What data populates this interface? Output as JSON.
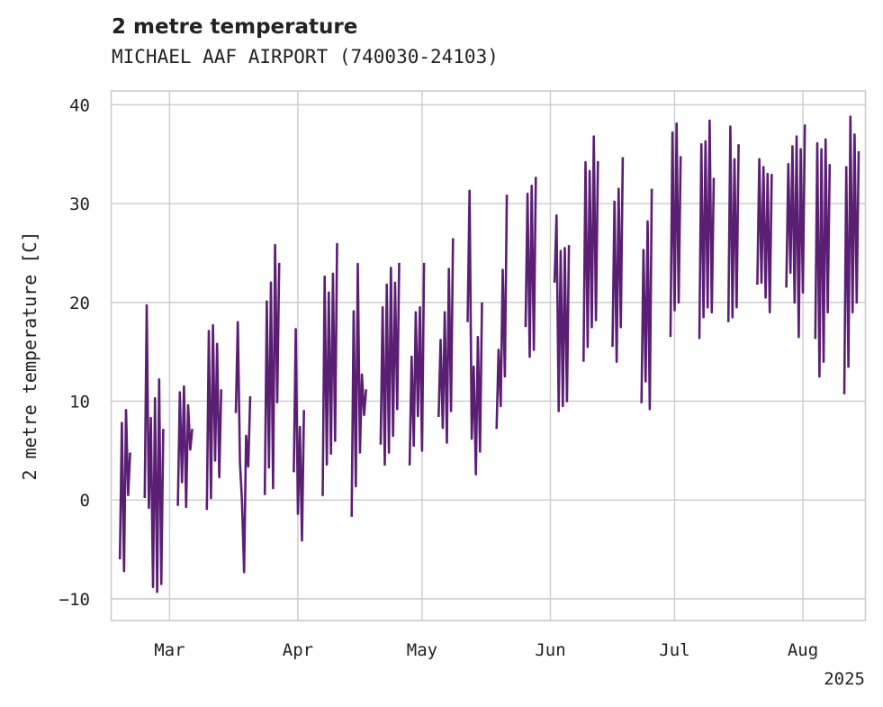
{
  "chart_data": {
    "type": "line",
    "title": "2 metre temperature",
    "subtitle": "MICHAEL AAF AIRPORT (740030-24103)",
    "xlabel": "",
    "ylabel": "2 metre temperature [C]",
    "x_range": [
      "2025-02-15",
      "2025-08-16"
    ],
    "ylim": [
      -12.2,
      41.4
    ],
    "y_ticks": [
      {
        "value": -10,
        "label": "−10"
      },
      {
        "value": 0,
        "label": "0"
      },
      {
        "value": 10,
        "label": "10"
      },
      {
        "value": 20,
        "label": "20"
      },
      {
        "value": 30,
        "label": "30"
      },
      {
        "value": 40,
        "label": "40"
      }
    ],
    "x_ticks": [
      {
        "date": "2025-03-01",
        "label": "Mar"
      },
      {
        "date": "2025-04-01",
        "label": "Apr"
      },
      {
        "date": "2025-05-01",
        "label": "May"
      },
      {
        "date": "2025-06-01",
        "label": "Jun"
      },
      {
        "date": "2025-07-01",
        "label": "Jul"
      },
      {
        "date": "2025-08-01",
        "label": "Aug"
      }
    ],
    "year_label": "2025",
    "grid": true,
    "series_color": "#5a1e73",
    "series": [
      {
        "values": [
          [
            "2025-02-17",
            -6.0
          ],
          [
            "2025-02-17",
            7.8
          ],
          [
            "2025-02-18",
            -7.2
          ],
          [
            "2025-02-18",
            9.1
          ],
          [
            "2025-02-19",
            0.5
          ],
          [
            "2025-02-19",
            4.8
          ],
          [
            "2025-02-23",
            0.2
          ],
          [
            "2025-02-23",
            19.7
          ],
          [
            "2025-02-24",
            -0.8
          ],
          [
            "2025-02-24",
            8.3
          ],
          [
            "2025-02-25",
            -8.8
          ],
          [
            "2025-02-25",
            10.3
          ],
          [
            "2025-02-26",
            -9.3
          ],
          [
            "2025-02-26",
            12.2
          ],
          [
            "2025-02-27",
            -8.5
          ],
          [
            "2025-02-27",
            7.2
          ],
          [
            "2025-03-03",
            -0.6
          ],
          [
            "2025-03-03",
            10.9
          ],
          [
            "2025-03-04",
            1.8
          ],
          [
            "2025-03-04",
            11.5
          ],
          [
            "2025-03-05",
            -0.7
          ],
          [
            "2025-03-05",
            9.6
          ],
          [
            "2025-03-06",
            5.1
          ],
          [
            "2025-03-06",
            7.2
          ],
          [
            "2025-03-10",
            -1.0
          ],
          [
            "2025-03-10",
            17.1
          ],
          [
            "2025-03-11",
            0.2
          ],
          [
            "2025-03-11",
            17.7
          ],
          [
            "2025-03-12",
            4.0
          ],
          [
            "2025-03-12",
            15.8
          ],
          [
            "2025-03-13",
            2.3
          ],
          [
            "2025-03-13",
            11.2
          ],
          [
            "2025-03-17",
            8.8
          ],
          [
            "2025-03-17",
            18.0
          ],
          [
            "2025-03-18",
            3.8
          ],
          [
            "2025-03-18",
            0.0
          ],
          [
            "2025-03-19",
            -7.3
          ],
          [
            "2025-03-19",
            6.5
          ],
          [
            "2025-03-20",
            3.4
          ],
          [
            "2025-03-20",
            10.5
          ],
          [
            "2025-03-24",
            0.5
          ],
          [
            "2025-03-24",
            20.1
          ],
          [
            "2025-03-25",
            3.3
          ],
          [
            "2025-03-25",
            22.0
          ],
          [
            "2025-03-26",
            1.2
          ],
          [
            "2025-03-26",
            25.8
          ],
          [
            "2025-03-27",
            9.9
          ],
          [
            "2025-03-27",
            24.0
          ],
          [
            "2025-03-31",
            2.8
          ],
          [
            "2025-03-31",
            17.3
          ],
          [
            "2025-04-01",
            -1.4
          ],
          [
            "2025-04-01",
            7.4
          ],
          [
            "2025-04-02",
            -4.1
          ],
          [
            "2025-04-02",
            9.1
          ],
          [
            "2025-04-07",
            0.4
          ],
          [
            "2025-04-07",
            22.6
          ],
          [
            "2025-04-08",
            3.6
          ],
          [
            "2025-04-08",
            21.0
          ],
          [
            "2025-04-09",
            4.7
          ],
          [
            "2025-04-09",
            22.9
          ],
          [
            "2025-04-10",
            6.0
          ],
          [
            "2025-04-10",
            26.0
          ],
          [
            "2025-04-14",
            -1.7
          ],
          [
            "2025-04-14",
            19.1
          ],
          [
            "2025-04-15",
            1.4
          ],
          [
            "2025-04-15",
            23.9
          ],
          [
            "2025-04-16",
            4.8
          ],
          [
            "2025-04-16",
            12.7
          ],
          [
            "2025-04-17",
            8.6
          ],
          [
            "2025-04-17",
            11.2
          ],
          [
            "2025-04-21",
            5.6
          ],
          [
            "2025-04-21",
            19.5
          ],
          [
            "2025-04-22",
            3.6
          ],
          [
            "2025-04-22",
            21.8
          ],
          [
            "2025-04-23",
            4.8
          ],
          [
            "2025-04-23",
            23.5
          ],
          [
            "2025-04-24",
            6.5
          ],
          [
            "2025-04-24",
            22.0
          ],
          [
            "2025-04-25",
            9.2
          ],
          [
            "2025-04-25",
            24.0
          ],
          [
            "2025-04-28",
            3.5
          ],
          [
            "2025-04-28",
            14.5
          ],
          [
            "2025-04-29",
            5.5
          ],
          [
            "2025-04-29",
            19.0
          ],
          [
            "2025-04-30",
            8.5
          ],
          [
            "2025-04-30",
            19.5
          ],
          [
            "2025-05-01",
            5.0
          ],
          [
            "2025-05-01",
            24.0
          ],
          [
            "2025-05-05",
            8.4
          ],
          [
            "2025-05-05",
            16.2
          ],
          [
            "2025-05-06",
            7.3
          ],
          [
            "2025-05-06",
            19.0
          ],
          [
            "2025-05-07",
            5.8
          ],
          [
            "2025-05-07",
            23.4
          ],
          [
            "2025-05-08",
            9.0
          ],
          [
            "2025-05-08",
            26.5
          ],
          [
            "2025-05-12",
            18.0
          ],
          [
            "2025-05-12",
            31.3
          ],
          [
            "2025-05-13",
            6.2
          ],
          [
            "2025-05-13",
            13.5
          ],
          [
            "2025-05-14",
            2.6
          ],
          [
            "2025-05-14",
            16.5
          ],
          [
            "2025-05-15",
            4.9
          ],
          [
            "2025-05-15",
            20.0
          ],
          [
            "2025-05-19",
            7.2
          ],
          [
            "2025-05-19",
            15.2
          ],
          [
            "2025-05-20",
            9.5
          ],
          [
            "2025-05-20",
            23.3
          ],
          [
            "2025-05-21",
            12.5
          ],
          [
            "2025-05-21",
            30.9
          ],
          [
            "2025-05-26",
            17.5
          ],
          [
            "2025-05-26",
            31.0
          ],
          [
            "2025-05-27",
            14.5
          ],
          [
            "2025-05-27",
            31.8
          ],
          [
            "2025-05-28",
            15.2
          ],
          [
            "2025-05-28",
            32.7
          ],
          [
            "2025-06-02",
            22.0
          ],
          [
            "2025-06-02",
            28.8
          ],
          [
            "2025-06-03",
            9.0
          ],
          [
            "2025-06-03",
            25.2
          ],
          [
            "2025-06-04",
            9.5
          ],
          [
            "2025-06-04",
            25.5
          ],
          [
            "2025-06-05",
            10.0
          ],
          [
            "2025-06-05",
            25.8
          ],
          [
            "2025-06-09",
            14.0
          ],
          [
            "2025-06-09",
            34.2
          ],
          [
            "2025-06-10",
            15.5
          ],
          [
            "2025-06-10",
            33.3
          ],
          [
            "2025-06-11",
            17.5
          ],
          [
            "2025-06-11",
            36.8
          ],
          [
            "2025-06-12",
            18.2
          ],
          [
            "2025-06-12",
            34.3
          ],
          [
            "2025-06-16",
            15.5
          ],
          [
            "2025-06-16",
            30.2
          ],
          [
            "2025-06-17",
            14.0
          ],
          [
            "2025-06-17",
            31.5
          ],
          [
            "2025-06-18",
            17.5
          ],
          [
            "2025-06-18",
            34.7
          ],
          [
            "2025-06-23",
            9.8
          ],
          [
            "2025-06-23",
            25.3
          ],
          [
            "2025-06-24",
            12.0
          ],
          [
            "2025-06-24",
            28.2
          ],
          [
            "2025-06-25",
            9.2
          ],
          [
            "2025-06-25",
            31.5
          ],
          [
            "2025-06-30",
            16.5
          ],
          [
            "2025-06-30",
            37.2
          ],
          [
            "2025-07-01",
            19.2
          ],
          [
            "2025-07-01",
            38.1
          ],
          [
            "2025-07-02",
            20.0
          ],
          [
            "2025-07-02",
            34.8
          ],
          [
            "2025-07-07",
            16.3
          ],
          [
            "2025-07-07",
            36.0
          ],
          [
            "2025-07-08",
            18.5
          ],
          [
            "2025-07-08",
            36.3
          ],
          [
            "2025-07-09",
            19.5
          ],
          [
            "2025-07-09",
            38.4
          ],
          [
            "2025-07-10",
            19.0
          ],
          [
            "2025-07-10",
            32.6
          ],
          [
            "2025-07-14",
            18.0
          ],
          [
            "2025-07-14",
            37.8
          ],
          [
            "2025-07-15",
            18.5
          ],
          [
            "2025-07-15",
            34.5
          ],
          [
            "2025-07-16",
            19.5
          ],
          [
            "2025-07-16",
            36.0
          ],
          [
            "2025-07-21",
            21.8
          ],
          [
            "2025-07-21",
            34.5
          ],
          [
            "2025-07-22",
            22.0
          ],
          [
            "2025-07-22",
            33.7
          ],
          [
            "2025-07-23",
            20.5
          ],
          [
            "2025-07-23",
            33.0
          ],
          [
            "2025-07-24",
            19.0
          ],
          [
            "2025-07-24",
            33.0
          ],
          [
            "2025-07-28",
            21.5
          ],
          [
            "2025-07-28",
            34.0
          ],
          [
            "2025-07-29",
            23.0
          ],
          [
            "2025-07-29",
            35.8
          ],
          [
            "2025-07-30",
            20.0
          ],
          [
            "2025-07-30",
            36.8
          ],
          [
            "2025-07-31",
            16.5
          ],
          [
            "2025-07-31",
            35.5
          ],
          [
            "2025-08-01",
            21.0
          ],
          [
            "2025-08-01",
            38.0
          ],
          [
            "2025-08-04",
            16.3
          ],
          [
            "2025-08-04",
            36.1
          ],
          [
            "2025-08-05",
            12.5
          ],
          [
            "2025-08-05",
            35.5
          ],
          [
            "2025-08-06",
            14.0
          ],
          [
            "2025-08-06",
            36.5
          ],
          [
            "2025-08-07",
            19.0
          ],
          [
            "2025-08-07",
            34.0
          ],
          [
            "2025-08-11",
            10.7
          ],
          [
            "2025-08-11",
            33.7
          ],
          [
            "2025-08-12",
            13.5
          ],
          [
            "2025-08-12",
            38.8
          ],
          [
            "2025-08-13",
            19.0
          ],
          [
            "2025-08-13",
            37.0
          ],
          [
            "2025-08-14",
            20.0
          ],
          [
            "2025-08-14",
            35.3
          ]
        ]
      }
    ]
  }
}
